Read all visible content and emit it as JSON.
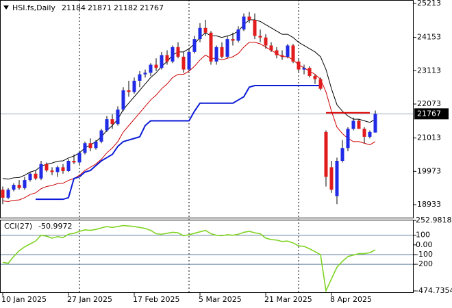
{
  "chart_data": [
    {
      "type": "candlestick",
      "title": "HSI.fs,Daily",
      "header_values": [
        21184,
        21871,
        21182,
        21767
      ],
      "categories": [
        "10 Jan 2025",
        null,
        null,
        null,
        null,
        null,
        null,
        null,
        null,
        null,
        null,
        null,
        "27 Jan 2025",
        null,
        null,
        null,
        null,
        null,
        null,
        null,
        null,
        null,
        null,
        null,
        "17 Feb 2025",
        null,
        null,
        null,
        null,
        null,
        null,
        null,
        null,
        null,
        null,
        null,
        "5 Mar 2025",
        null,
        null,
        null,
        null,
        null,
        null,
        null,
        null,
        null,
        null,
        null,
        "21 Mar 2025",
        null,
        null,
        null,
        null,
        null,
        null,
        null,
        null,
        null,
        null,
        null,
        "8 Apr 2025",
        null,
        null,
        null,
        null,
        null,
        null,
        null,
        null
      ],
      "open": [
        19400,
        19150,
        19400,
        19550,
        19450,
        19700,
        19900,
        19750,
        20200,
        20000,
        19950,
        20100,
        19980,
        20300,
        20250,
        20550,
        20850,
        20700,
        20900,
        21250,
        21600,
        21450,
        21900,
        22500,
        22450,
        22800,
        23000,
        23050,
        23300,
        23200,
        23600,
        23400,
        23850,
        23550,
        23150,
        23700,
        24100,
        24450,
        24300,
        23400,
        23850,
        23550,
        24100,
        24050,
        24400,
        24800,
        24700,
        24200,
        24150,
        23900,
        23750,
        23600,
        23550,
        23900,
        23400,
        23150,
        23200,
        22950,
        22850,
        21200,
        20100,
        19200,
        20300,
        20700,
        21300,
        21550,
        21300,
        21050,
        21184
      ],
      "high": [
        19500,
        19450,
        19600,
        19700,
        19800,
        19950,
        20000,
        20300,
        20250,
        20100,
        20150,
        20200,
        20350,
        20500,
        20600,
        20900,
        21000,
        20950,
        21300,
        21700,
        21750,
        22000,
        22600,
        22800,
        22900,
        23100,
        23150,
        23350,
        23500,
        23700,
        23750,
        23900,
        24000,
        23700,
        23800,
        24200,
        24600,
        24700,
        24350,
        23900,
        24000,
        24200,
        24300,
        24500,
        24900,
        24950,
        24900,
        24400,
        24250,
        24000,
        23850,
        23750,
        23950,
        23950,
        23500,
        23300,
        23250,
        23000,
        22900,
        21250,
        20300,
        20400,
        20950,
        21350,
        21650,
        21600,
        21350,
        21250,
        21871
      ],
      "low": [
        18950,
        19100,
        19350,
        19400,
        19400,
        19650,
        19700,
        19700,
        19950,
        19850,
        19800,
        19900,
        19950,
        20200,
        20150,
        20500,
        20600,
        20650,
        20850,
        21200,
        21300,
        21400,
        21850,
        22300,
        22400,
        22600,
        22900,
        22950,
        23100,
        23150,
        23300,
        23350,
        23500,
        23050,
        23100,
        23650,
        24000,
        24200,
        23300,
        23300,
        23500,
        23500,
        23900,
        24000,
        24350,
        24600,
        24100,
        24000,
        23800,
        23700,
        23500,
        23450,
        23500,
        23350,
        23050,
        23000,
        22900,
        22700,
        22500,
        19500,
        19300,
        18950,
        20250,
        20600,
        21250,
        21300,
        20850,
        21000,
        21182
      ],
      "close": [
        19150,
        19400,
        19550,
        19450,
        19700,
        19900,
        19750,
        20200,
        20000,
        19950,
        20100,
        19980,
        20300,
        20250,
        20550,
        20850,
        20700,
        20900,
        21250,
        21600,
        21450,
        21900,
        22500,
        22450,
        22800,
        23000,
        23050,
        23300,
        23200,
        23600,
        23400,
        23850,
        23550,
        23150,
        23700,
        24100,
        24450,
        24300,
        23400,
        23850,
        23550,
        24100,
        24050,
        24400,
        24800,
        24700,
        24200,
        24150,
        23900,
        23750,
        23600,
        23550,
        23900,
        23400,
        23150,
        23200,
        22950,
        22850,
        22550,
        19800,
        19400,
        20300,
        20700,
        21300,
        21550,
        21300,
        21050,
        21200,
        21767
      ],
      "up_color": "#1f2be6",
      "down_color": "#e21c1c",
      "series": [
        {
          "color": "#000000",
          "line_width": 1,
          "values": [
            19750,
            19730,
            19770,
            19780,
            19850,
            19950,
            20000,
            20130,
            20200,
            20230,
            20290,
            20300,
            20390,
            20450,
            20550,
            20700,
            20800,
            20900,
            21050,
            21250,
            21400,
            21600,
            21900,
            22100,
            22300,
            22500,
            22700,
            22900,
            23050,
            23250,
            23400,
            23600,
            23700,
            23700,
            23800,
            23950,
            24150,
            24300,
            24200,
            24200,
            24150,
            24200,
            24250,
            24350,
            24550,
            24700,
            24700,
            24650,
            24550,
            24450,
            24350,
            24250,
            24250,
            24150,
            24000,
            23900,
            23800,
            23700,
            23550,
            23150,
            22550,
            22050,
            21850,
            21700,
            21600,
            21600,
            21550,
            21500,
            21600
          ]
        },
        {
          "color": "#cc0000",
          "line_width": 1,
          "values": [
            19050,
            19030,
            19070,
            19080,
            19150,
            19250,
            19300,
            19430,
            19500,
            19530,
            19590,
            19600,
            19690,
            19750,
            19850,
            20000,
            20100,
            20200,
            20350,
            20550,
            20700,
            20900,
            21200,
            21400,
            21600,
            21800,
            22000,
            22200,
            22350,
            22550,
            22700,
            22900,
            23000,
            23000,
            23100,
            23250,
            23450,
            23600,
            23500,
            23500,
            23450,
            23500,
            23550,
            23650,
            23850,
            24000,
            24000,
            23950,
            23850,
            23750,
            23650,
            23550,
            23550,
            23450,
            23300,
            23200,
            23100,
            23000,
            22850,
            22450,
            21850,
            21350,
            21150,
            21000,
            20900,
            20900,
            20850,
            20800,
            20900
          ]
        },
        {
          "color": "#0b1bd6",
          "line_width": 2,
          "values": [
            null,
            null,
            null,
            null,
            null,
            null,
            19100,
            19100,
            19100,
            19100,
            19100,
            19100,
            19150,
            19750,
            19800,
            19950,
            20000,
            20150,
            20300,
            20400,
            20500,
            20750,
            20900,
            20950,
            21000,
            21050,
            21400,
            21550,
            21550,
            21550,
            21550,
            21550,
            21550,
            21550,
            21550,
            21850,
            22100,
            22100,
            22100,
            22100,
            22100,
            22100,
            22100,
            22200,
            22300,
            22600,
            22650,
            22650,
            22650,
            22650,
            22650,
            22650,
            22650,
            22650,
            22650,
            22650,
            22650,
            22650,
            22650,
            null,
            null,
            null,
            null,
            null,
            null,
            null,
            null,
            null,
            null
          ]
        },
        {
          "color": "#e00000",
          "line_width": 2,
          "values": [
            null,
            null,
            null,
            null,
            null,
            null,
            null,
            null,
            null,
            null,
            null,
            null,
            null,
            null,
            null,
            null,
            null,
            null,
            null,
            null,
            null,
            null,
            null,
            null,
            null,
            null,
            null,
            null,
            null,
            null,
            null,
            null,
            null,
            null,
            null,
            null,
            null,
            null,
            null,
            null,
            null,
            null,
            null,
            null,
            null,
            null,
            null,
            null,
            null,
            null,
            null,
            null,
            null,
            null,
            null,
            null,
            null,
            null,
            null,
            21800,
            21800,
            21800,
            21800,
            21800,
            21800,
            21800,
            21800,
            21800,
            null
          ]
        }
      ],
      "ylim": [
        18527,
        25320
      ],
      "yticks": [
        25213,
        24153,
        23113,
        22073,
        21013,
        19973,
        18933
      ]
    },
    {
      "type": "line",
      "title": "CCI(27)",
      "value": -50.9972,
      "series": [
        {
          "color": "#7ed321",
          "values": [
            -180,
            -190,
            -120,
            -60,
            -20,
            10,
            40,
            100,
            90,
            70,
            85,
            75,
            110,
            120,
            140,
            155,
            150,
            160,
            175,
            190,
            180,
            190,
            200,
            195,
            190,
            180,
            170,
            150,
            115,
            110,
            120,
            130,
            125,
            95,
            105,
            120,
            135,
            150,
            115,
            100,
            95,
            105,
            100,
            110,
            130,
            140,
            125,
            115,
            70,
            55,
            50,
            35,
            40,
            20,
            -10,
            -15,
            -40,
            -70,
            -100,
            -474.7354,
            -350,
            -230,
            -170,
            -120,
            -105,
            -90,
            -90,
            -80,
            -50.9972
          ]
        }
      ],
      "ylim": [
        -474.7354,
        252.9818
      ],
      "yticks": [
        252.9818,
        100,
        {
          "value": 0,
          "label": "0.00"
        },
        -100,
        -200,
        -474.7354
      ],
      "levels": [
        100,
        -100,
        -200
      ]
    }
  ]
}
